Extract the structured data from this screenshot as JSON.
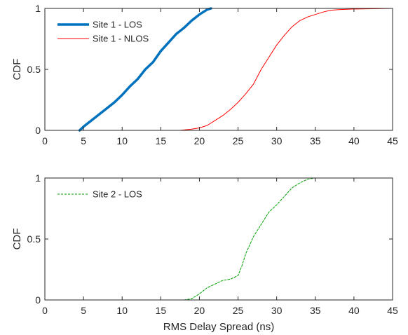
{
  "chart_data": [
    {
      "type": "line",
      "title": "",
      "xlabel": "",
      "ylabel": "CDF",
      "xlim": [
        0,
        45
      ],
      "ylim": [
        0,
        1
      ],
      "xticks": [
        0,
        5,
        10,
        15,
        20,
        25,
        30,
        35,
        40,
        45
      ],
      "yticks": [
        0,
        0.5,
        1
      ],
      "grid": false,
      "legend": "top-left",
      "series": [
        {
          "name": "Site 1 - LOS",
          "color": "#0072BD",
          "style": "solid-thick",
          "points": [
            [
              4.5,
              0
            ],
            [
              5,
              0.03
            ],
            [
              6,
              0.08
            ],
            [
              7,
              0.13
            ],
            [
              8,
              0.18
            ],
            [
              9,
              0.23
            ],
            [
              10,
              0.29
            ],
            [
              11,
              0.36
            ],
            [
              12,
              0.42
            ],
            [
              13,
              0.5
            ],
            [
              14,
              0.56
            ],
            [
              15,
              0.65
            ],
            [
              16,
              0.72
            ],
            [
              17,
              0.79
            ],
            [
              18,
              0.84
            ],
            [
              19,
              0.9
            ],
            [
              20,
              0.95
            ],
            [
              21,
              0.99
            ],
            [
              21.5,
              1
            ]
          ]
        },
        {
          "name": "Site 1 - NLOS",
          "color": "#FF0000",
          "style": "solid-thin",
          "points": [
            [
              17.5,
              0
            ],
            [
              19,
              0.01
            ],
            [
              20,
              0.02
            ],
            [
              21,
              0.04
            ],
            [
              22,
              0.08
            ],
            [
              23,
              0.12
            ],
            [
              24,
              0.17
            ],
            [
              25,
              0.23
            ],
            [
              26,
              0.3
            ],
            [
              27,
              0.38
            ],
            [
              28,
              0.5
            ],
            [
              29,
              0.6
            ],
            [
              30,
              0.7
            ],
            [
              31,
              0.78
            ],
            [
              32,
              0.85
            ],
            [
              33,
              0.9
            ],
            [
              34,
              0.93
            ],
            [
              35,
              0.95
            ],
            [
              36,
              0.97
            ],
            [
              37,
              0.985
            ],
            [
              38,
              0.99
            ],
            [
              40,
              0.995
            ],
            [
              45,
              1
            ]
          ]
        }
      ]
    },
    {
      "type": "line",
      "title": "",
      "xlabel": "RMS Delay Spread (ns)",
      "ylabel": "CDF",
      "xlim": [
        0,
        45
      ],
      "ylim": [
        0,
        1
      ],
      "xticks": [
        0,
        5,
        10,
        15,
        20,
        25,
        30,
        35,
        40,
        45
      ],
      "yticks": [
        0,
        0.5,
        1
      ],
      "grid": false,
      "legend": "top-left",
      "series": [
        {
          "name": "Site 2 - LOS",
          "color": "#00A000",
          "style": "dashed",
          "points": [
            [
              18,
              0
            ],
            [
              19,
              0.01
            ],
            [
              20,
              0.05
            ],
            [
              21,
              0.1
            ],
            [
              22,
              0.13
            ],
            [
              23,
              0.16
            ],
            [
              24,
              0.17
            ],
            [
              25,
              0.2
            ],
            [
              25.5,
              0.28
            ],
            [
              26,
              0.38
            ],
            [
              27,
              0.52
            ],
            [
              28,
              0.62
            ],
            [
              29,
              0.72
            ],
            [
              30,
              0.78
            ],
            [
              31,
              0.85
            ],
            [
              32,
              0.92
            ],
            [
              33,
              0.96
            ],
            [
              34,
              0.99
            ],
            [
              35,
              1
            ]
          ]
        }
      ]
    }
  ]
}
